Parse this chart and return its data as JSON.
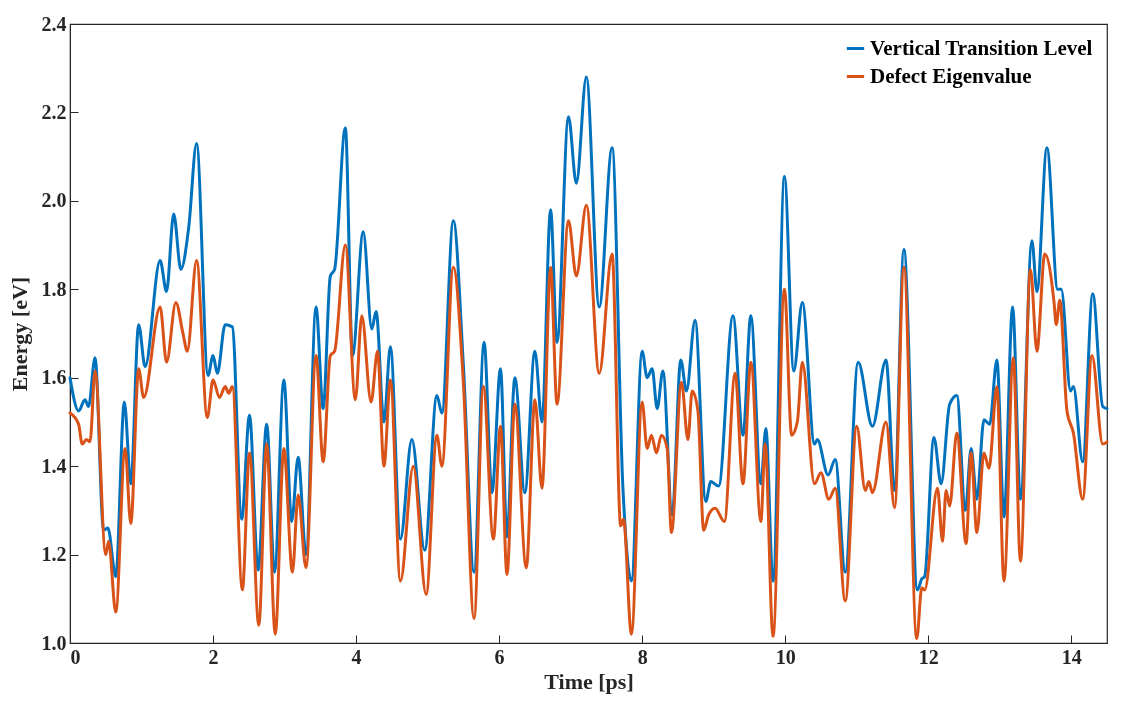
{
  "chart_data": {
    "type": "line",
    "xlabel": "Time [ps]",
    "ylabel": "Energy [eV]",
    "xlim": [
      0,
      14.5
    ],
    "ylim": [
      1.0,
      2.4
    ],
    "xticks": [
      0,
      2,
      4,
      6,
      8,
      10,
      12,
      14
    ],
    "yticks": [
      {
        "value": 1.0,
        "label": "1.0"
      },
      {
        "value": 1.2,
        "label": "1.2"
      },
      {
        "value": 1.4,
        "label": "1.4"
      },
      {
        "value": 1.6,
        "label": "1.6"
      },
      {
        "value": 1.8,
        "label": "1.8"
      },
      {
        "value": 2.0,
        "label": "2.0"
      },
      {
        "value": 2.2,
        "label": "2.2"
      },
      {
        "value": 2.4,
        "label": "2.4"
      }
    ],
    "grid": false,
    "legend": "top right",
    "marker": "none",
    "line_style": "solid",
    "series": [
      {
        "name": "Vertical Transition Level",
        "color": "#0072bd",
        "x": [
          0,
          0.12,
          0.21,
          0.26,
          0.35,
          0.47,
          0.53,
          0.64,
          0.76,
          0.85,
          0.96,
          1.05,
          1.26,
          1.35,
          1.45,
          1.55,
          1.66,
          1.77,
          1.93,
          2.0,
          2.06,
          2.17,
          2.27,
          2.4,
          2.51,
          2.63,
          2.75,
          2.86,
          2.99,
          3.1,
          3.19,
          3.3,
          3.44,
          3.54,
          3.64,
          3.7,
          3.85,
          3.95,
          4.1,
          4.22,
          4.28,
          4.39,
          4.48,
          4.62,
          4.78,
          4.96,
          5.13,
          5.2,
          5.36,
          5.5,
          5.65,
          5.79,
          5.9,
          6.02,
          6.11,
          6.22,
          6.36,
          6.5,
          6.6,
          6.72,
          6.81,
          6.97,
          7.08,
          7.22,
          7.4,
          7.58,
          7.73,
          7.85,
          8.0,
          8.07,
          8.14,
          8.21,
          8.29,
          8.42,
          8.54,
          8.62,
          8.74,
          8.89,
          8.96,
          9.07,
          9.27,
          9.41,
          9.52,
          9.66,
          9.73,
          9.83,
          9.99,
          10.12,
          10.24,
          10.41,
          10.45,
          10.6,
          10.7,
          10.84,
          11.02,
          11.22,
          11.41,
          11.53,
          11.66,
          11.85,
          11.91,
          11.95,
          12.08,
          12.18,
          12.3,
          12.4,
          12.52,
          12.6,
          12.68,
          12.78,
          12.86,
          12.96,
          13.06,
          13.18,
          13.29,
          13.45,
          13.52,
          13.66,
          13.81,
          13.86,
          13.99,
          14.03,
          14.16,
          14.3,
          14.44,
          14.5
        ],
        "values": [
          1.6,
          1.525,
          1.55,
          1.535,
          1.645,
          1.255,
          1.26,
          1.15,
          1.545,
          1.36,
          1.72,
          1.625,
          1.865,
          1.795,
          1.97,
          1.845,
          1.94,
          2.13,
          1.605,
          1.65,
          1.61,
          1.72,
          1.715,
          1.28,
          1.515,
          1.165,
          1.495,
          1.16,
          1.595,
          1.275,
          1.42,
          1.2,
          1.76,
          1.53,
          1.83,
          1.845,
          2.165,
          1.65,
          1.93,
          1.71,
          1.75,
          1.5,
          1.67,
          1.235,
          1.46,
          1.21,
          1.56,
          1.52,
          1.955,
          1.63,
          1.16,
          1.68,
          1.34,
          1.62,
          1.24,
          1.6,
          1.34,
          1.66,
          1.5,
          1.98,
          1.68,
          2.19,
          2.04,
          2.28,
          1.76,
          2.12,
          1.355,
          1.14,
          1.66,
          1.6,
          1.62,
          1.53,
          1.615,
          1.29,
          1.64,
          1.57,
          1.73,
          1.32,
          1.365,
          1.355,
          1.74,
          1.47,
          1.74,
          1.36,
          1.485,
          1.14,
          2.055,
          1.615,
          1.77,
          1.45,
          1.46,
          1.38,
          1.415,
          1.16,
          1.635,
          1.49,
          1.64,
          1.345,
          1.89,
          1.12,
          1.145,
          1.15,
          1.465,
          1.36,
          1.54,
          1.56,
          1.3,
          1.44,
          1.325,
          1.505,
          1.495,
          1.64,
          1.285,
          1.76,
          1.325,
          1.91,
          1.795,
          2.12,
          1.8,
          1.8,
          1.57,
          1.58,
          1.41,
          1.79,
          1.535,
          1.53
        ]
      },
      {
        "name": "Defect Eigenvalue",
        "color": "#d95319",
        "x": [
          0,
          0.12,
          0.17,
          0.23,
          0.28,
          0.35,
          0.5,
          0.54,
          0.64,
          0.77,
          0.85,
          0.96,
          1.03,
          1.26,
          1.35,
          1.48,
          1.58,
          1.64,
          1.77,
          1.92,
          2.0,
          2.09,
          2.17,
          2.22,
          2.27,
          2.41,
          2.51,
          2.64,
          2.75,
          2.87,
          2.99,
          3.11,
          3.19,
          3.3,
          3.44,
          3.54,
          3.64,
          3.7,
          3.85,
          3.99,
          4.08,
          4.21,
          4.3,
          4.39,
          4.48,
          4.62,
          4.8,
          4.98,
          5.13,
          5.2,
          5.36,
          5.5,
          5.65,
          5.78,
          5.92,
          6.02,
          6.11,
          6.22,
          6.38,
          6.5,
          6.6,
          6.72,
          6.81,
          6.97,
          7.08,
          7.22,
          7.4,
          7.58,
          7.7,
          7.74,
          7.85,
          8.0,
          8.07,
          8.13,
          8.2,
          8.27,
          8.35,
          8.41,
          8.55,
          8.64,
          8.7,
          8.78,
          8.86,
          8.93,
          9.02,
          9.15,
          9.3,
          9.41,
          9.52,
          9.66,
          9.72,
          9.83,
          9.99,
          10.09,
          10.17,
          10.24,
          10.41,
          10.5,
          10.61,
          10.7,
          10.84,
          11.0,
          11.12,
          11.17,
          11.22,
          11.41,
          11.53,
          11.66,
          11.84,
          11.91,
          11.95,
          12.13,
          12.2,
          12.25,
          12.3,
          12.4,
          12.53,
          12.6,
          12.68,
          12.78,
          12.85,
          12.96,
          13.06,
          13.19,
          13.29,
          13.43,
          13.52,
          13.63,
          13.76,
          13.79,
          13.84,
          13.94,
          14.03,
          14.16,
          14.29,
          14.44,
          14.5
        ],
        "values": [
          1.52,
          1.495,
          1.45,
          1.46,
          1.455,
          1.615,
          1.2,
          1.23,
          1.07,
          1.44,
          1.27,
          1.62,
          1.555,
          1.76,
          1.635,
          1.77,
          1.7,
          1.66,
          1.865,
          1.51,
          1.595,
          1.555,
          1.58,
          1.565,
          1.58,
          1.12,
          1.43,
          1.04,
          1.45,
          1.02,
          1.44,
          1.16,
          1.335,
          1.17,
          1.65,
          1.41,
          1.65,
          1.66,
          1.9,
          1.55,
          1.74,
          1.545,
          1.66,
          1.4,
          1.595,
          1.14,
          1.4,
          1.11,
          1.47,
          1.4,
          1.85,
          1.59,
          1.055,
          1.58,
          1.235,
          1.49,
          1.155,
          1.54,
          1.17,
          1.55,
          1.35,
          1.85,
          1.54,
          1.955,
          1.83,
          1.99,
          1.61,
          1.88,
          1.265,
          1.28,
          1.02,
          1.545,
          1.44,
          1.47,
          1.43,
          1.47,
          1.44,
          1.25,
          1.59,
          1.46,
          1.57,
          1.525,
          1.255,
          1.29,
          1.305,
          1.275,
          1.61,
          1.36,
          1.635,
          1.275,
          1.45,
          1.015,
          1.8,
          1.47,
          1.5,
          1.635,
          1.36,
          1.385,
          1.325,
          1.35,
          1.095,
          1.49,
          1.345,
          1.365,
          1.34,
          1.5,
          1.306,
          1.85,
          1.01,
          1.125,
          1.12,
          1.35,
          1.23,
          1.345,
          1.31,
          1.475,
          1.225,
          1.43,
          1.25,
          1.43,
          1.395,
          1.58,
          1.14,
          1.645,
          1.185,
          1.845,
          1.66,
          1.88,
          1.77,
          1.72,
          1.775,
          1.525,
          1.475,
          1.325,
          1.65,
          1.45,
          1.455
        ]
      }
    ]
  }
}
